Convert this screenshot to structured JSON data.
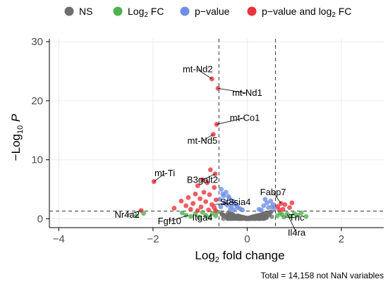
{
  "chart_data": {
    "type": "scatter",
    "title": "",
    "xlabel_main": "Log",
    "xlabel_sub": "2",
    "xlabel_rest": " fold change",
    "ylabel_pre": "−Log",
    "ylabel_sub": "10",
    "ylabel_P": "P",
    "xlim": [
      -4.2,
      2.9
    ],
    "ylim": [
      -1.5,
      30.5
    ],
    "x_ticks": [
      -4,
      -2,
      0,
      2
    ],
    "x_tick_labels": [
      "−4",
      "−2",
      "0",
      "2"
    ],
    "y_ticks": [
      0,
      10,
      20,
      30
    ],
    "y_tick_labels": [
      "0",
      "10",
      "20",
      "30"
    ],
    "grid": true,
    "fc_cutoffs": [
      -0.6,
      0.6
    ],
    "p_cutoff": 1.3,
    "legend_position": "top",
    "legend": [
      {
        "key": "ns",
        "label": "NS",
        "color": "#6e6e6e"
      },
      {
        "key": "fc",
        "label_main": "Log",
        "label_sub": "2",
        "label_rest": " FC",
        "color": "#4fb04f"
      },
      {
        "key": "p",
        "label": "p−value",
        "color": "#6f8fe6"
      },
      {
        "key": "pfc",
        "label_main": "p−value and log",
        "label_sub": "2",
        "label_rest": " FC",
        "color": "#e8343b"
      }
    ],
    "caption": "Total = 14,158 not NaN variables",
    "points": {
      "pfc": [
        [
          -0.75,
          23.7
        ],
        [
          -0.62,
          22.1
        ],
        [
          -0.65,
          16.0
        ],
        [
          -0.72,
          14.3
        ],
        [
          -1.98,
          6.3
        ],
        [
          -2.25,
          1.4
        ],
        [
          -0.78,
          8.3
        ],
        [
          -0.68,
          7.6
        ],
        [
          -0.95,
          6.6
        ],
        [
          -0.85,
          6.1
        ],
        [
          -1.05,
          5.6
        ],
        [
          -0.7,
          5.3
        ],
        [
          -0.92,
          4.5
        ],
        [
          -1.1,
          4.2
        ],
        [
          -0.8,
          4.1
        ],
        [
          -1.25,
          3.6
        ],
        [
          -1.0,
          3.4
        ],
        [
          -0.66,
          3.2
        ],
        [
          -1.4,
          3.0
        ],
        [
          -0.88,
          2.9
        ],
        [
          -1.15,
          2.6
        ],
        [
          -0.75,
          2.4
        ],
        [
          -1.3,
          2.2
        ],
        [
          -1.55,
          1.8
        ],
        [
          -0.98,
          2.0
        ],
        [
          -0.7,
          1.9
        ],
        [
          -1.2,
          1.6
        ],
        [
          -0.82,
          1.5
        ],
        [
          -1.05,
          1.4
        ],
        [
          -0.67,
          1.4
        ],
        [
          0.65,
          2.1
        ],
        [
          0.72,
          2.6
        ],
        [
          0.8,
          2.4
        ],
        [
          0.9,
          1.9
        ],
        [
          0.76,
          1.6
        ],
        [
          0.68,
          1.5
        ],
        [
          0.95,
          2.7
        ]
      ],
      "p": [
        [
          -0.55,
          5.0
        ],
        [
          -0.45,
          4.5
        ],
        [
          -0.5,
          3.9
        ],
        [
          -0.38,
          3.5
        ],
        [
          -0.58,
          3.3
        ],
        [
          -0.3,
          3.0
        ],
        [
          -0.48,
          2.8
        ],
        [
          -0.25,
          2.5
        ],
        [
          -0.42,
          2.3
        ],
        [
          -0.33,
          2.1
        ],
        [
          -0.2,
          1.9
        ],
        [
          -0.56,
          2.0
        ],
        [
          -0.15,
          1.7
        ],
        [
          -0.36,
          1.6
        ],
        [
          -0.1,
          1.5
        ],
        [
          -0.28,
          1.5
        ],
        [
          -0.52,
          4.2
        ],
        [
          -0.4,
          3.8
        ],
        [
          -0.46,
          2.6
        ],
        [
          -0.22,
          2.2
        ],
        [
          0.25,
          1.6
        ],
        [
          0.35,
          2.2
        ],
        [
          0.42,
          2.7
        ],
        [
          0.5,
          3.0
        ],
        [
          0.55,
          2.4
        ],
        [
          0.45,
          1.9
        ],
        [
          0.3,
          1.5
        ],
        [
          0.58,
          1.8
        ],
        [
          0.38,
          3.3
        ],
        [
          0.52,
          2.0
        ]
      ],
      "fc": [
        [
          -2.35,
          0.5
        ],
        [
          -2.2,
          0.9
        ],
        [
          -1.38,
          1.0
        ],
        [
          -1.3,
          0.6
        ],
        [
          -1.2,
          0.4
        ],
        [
          -1.1,
          0.9
        ],
        [
          -1.02,
          0.3
        ],
        [
          -0.95,
          1.1
        ],
        [
          -0.88,
          0.6
        ],
        [
          -0.8,
          0.2
        ],
        [
          -0.74,
          0.9
        ],
        [
          -0.67,
          0.5
        ],
        [
          -0.64,
          1.1
        ],
        [
          0.64,
          0.5
        ],
        [
          0.7,
          1.0
        ],
        [
          0.78,
          0.3
        ],
        [
          0.85,
          0.8
        ],
        [
          0.92,
          0.4
        ],
        [
          1.0,
          0.9
        ],
        [
          1.08,
          0.6
        ],
        [
          1.15,
          1.0
        ],
        [
          1.25,
          0.4
        ],
        [
          0.74,
          0.7
        ]
      ]
    },
    "ns_density": {
      "center": 0.0,
      "spread": 0.62,
      "count": 380
    },
    "labels": [
      {
        "text": "mt-Nd2",
        "x": -0.75,
        "y": 23.7,
        "lx": -1.05,
        "ly": 24.8
      },
      {
        "text": "mt-Nd1",
        "x": -0.62,
        "y": 22.1,
        "lx": 0.0,
        "ly": 20.8
      },
      {
        "text": "mt-Co1",
        "x": -0.65,
        "y": 16.0,
        "lx": -0.05,
        "ly": 16.6
      },
      {
        "text": "mt-Nd5",
        "x": -0.72,
        "y": 14.3,
        "lx": -0.95,
        "ly": 12.7
      },
      {
        "text": "mt-Ti",
        "x": -1.98,
        "y": 6.3,
        "lx": -1.75,
        "ly": 7.2
      },
      {
        "text": "B3galt2",
        "x": -0.68,
        "y": 7.6,
        "lx": -0.95,
        "ly": 6.1
      },
      {
        "text": "St8sia4",
        "x": -0.7,
        "y": 2.4,
        "lx": -0.25,
        "ly": 2.3
      },
      {
        "text": "Nr4a2",
        "x": -2.25,
        "y": 1.4,
        "lx": -2.55,
        "ly": 0.2
      },
      {
        "text": "Fgf10",
        "x": -1.25,
        "y": 0.6,
        "lx": -1.65,
        "ly": -0.9
      },
      {
        "text": "Itga4",
        "x": -0.8,
        "y": 0.6,
        "lx": -0.95,
        "ly": -0.3
      },
      {
        "text": "Fabp7",
        "x": 0.72,
        "y": 2.6,
        "lx": 0.55,
        "ly": 4.0
      },
      {
        "text": "Tnc",
        "x": 0.8,
        "y": 0.3,
        "lx": 1.05,
        "ly": -0.3
      },
      {
        "text": "Il4ra",
        "x": 0.85,
        "y": 0.8,
        "lx": 1.05,
        "ly": -2.9
      }
    ]
  }
}
